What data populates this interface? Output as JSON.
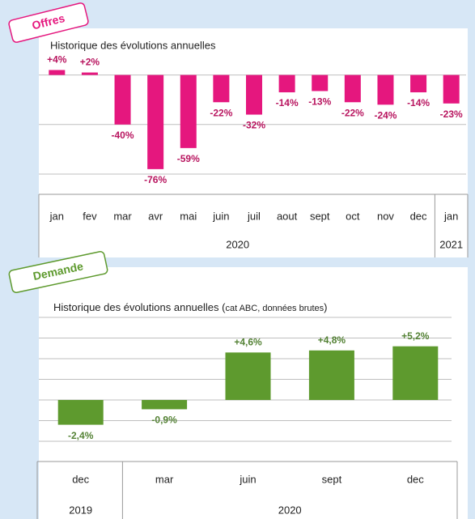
{
  "chart_data": [
    {
      "type": "bar",
      "tag": "Offres",
      "title": "Historique des évolutions annuelles",
      "categories": [
        "jan",
        "fev",
        "mar",
        "avr",
        "mai",
        "juin",
        "juil",
        "aout",
        "sept",
        "oct",
        "nov",
        "dec",
        "jan"
      ],
      "x_groups": [
        {
          "label": "2020",
          "span": 12
        },
        {
          "label": "2021",
          "span": 1
        }
      ],
      "values": [
        4,
        2,
        -40,
        -76,
        -59,
        -22,
        -32,
        -14,
        -13,
        -22,
        -24,
        -14,
        -23
      ],
      "value_labels": [
        "+4%",
        "+2%",
        "-40%",
        "-76%",
        "-59%",
        "-22%",
        "-32%",
        "-14%",
        "-13%",
        "-22%",
        "-24%",
        "-14%",
        "-23%"
      ],
      "color": "#e5177e",
      "label_color": "#b8155f",
      "ylim": [
        -80,
        20
      ],
      "yticks": [
        0,
        -40,
        -80
      ],
      "grid": true
    },
    {
      "type": "bar",
      "tag": "Demande",
      "title": "Historique des évolutions annuelles (",
      "title_note": "cat ABC, données brutes",
      "title_end": ")",
      "categories": [
        "dec",
        "mar",
        "juin",
        "sept",
        "dec"
      ],
      "x_groups": [
        {
          "label": "2019",
          "span": 1
        },
        {
          "label": "2020",
          "span": 4
        }
      ],
      "values": [
        -2.4,
        -0.9,
        4.6,
        4.8,
        5.2
      ],
      "value_labels": [
        "-2,4%",
        "-0,9%",
        "+4,6%",
        "+4,8%",
        "+5,2%"
      ],
      "color": "#5e9a2e",
      "label_color": "#548235",
      "ylim": [
        -4,
        8
      ],
      "yticks": [
        -4,
        -2,
        0,
        2,
        4,
        6,
        8
      ],
      "grid": true
    }
  ]
}
